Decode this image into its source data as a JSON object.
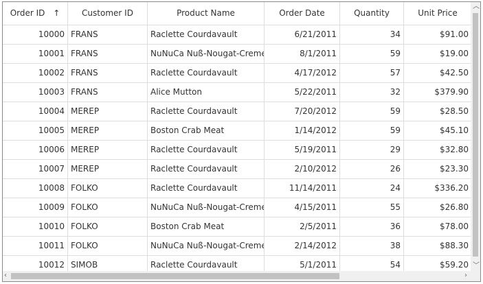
{
  "columns": [
    "Order ID",
    "Customer ID",
    "Product Name",
    "Order Date",
    "Quantity",
    "Unit Price"
  ],
  "sort_icon": "arrow-up-icon",
  "rows": [
    [
      "10000",
      "FRANS",
      "Raclette Courdavault",
      "6/21/2011",
      "34",
      "$91.00"
    ],
    [
      "10001",
      "FRANS",
      "NuNuCa Nuß-Nougat-Creme",
      "8/1/2011",
      "59",
      "$19.00"
    ],
    [
      "10002",
      "FRANS",
      "Raclette Courdavault",
      "4/17/2012",
      "57",
      "$42.50"
    ],
    [
      "10003",
      "FRANS",
      "Alice Mutton",
      "5/22/2011",
      "32",
      "$379.90"
    ],
    [
      "10004",
      "MEREP",
      "Raclette Courdavault",
      "7/20/2012",
      "59",
      "$28.50"
    ],
    [
      "10005",
      "MEREP",
      "Boston Crab Meat",
      "1/14/2012",
      "59",
      "$45.10"
    ],
    [
      "10006",
      "MEREP",
      "Raclette Courdavault",
      "5/19/2011",
      "29",
      "$32.80"
    ],
    [
      "10007",
      "MEREP",
      "Raclette Courdavault",
      "2/10/2012",
      "26",
      "$23.30"
    ],
    [
      "10008",
      "FOLKO",
      "Raclette Courdavault",
      "11/14/2011",
      "24",
      "$336.20"
    ],
    [
      "10009",
      "FOLKO",
      "NuNuCa Nuß-Nougat-Creme",
      "4/15/2011",
      "55",
      "$26.80"
    ],
    [
      "10010",
      "FOLKO",
      "Boston Crab Meat",
      "2/5/2011",
      "36",
      "$78.00"
    ],
    [
      "10011",
      "FOLKO",
      "NuNuCa Nuß-Nougat-Creme",
      "2/14/2012",
      "38",
      "$88.30"
    ],
    [
      "10012",
      "SIMOB",
      "Raclette Courdavault",
      "5/1/2011",
      "54",
      "$59.20"
    ]
  ]
}
